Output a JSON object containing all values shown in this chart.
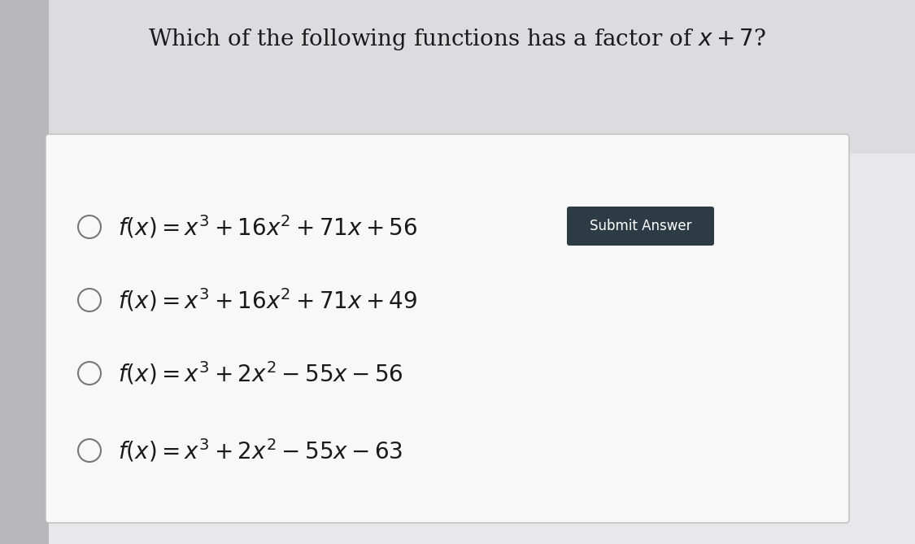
{
  "title": "Which of the following functions has a factor of $x + 7$?",
  "title_fontsize": 20,
  "title_color": "#1a1a1a",
  "outer_bg": "#c9c9cc",
  "inner_bg": "#e8e8ec",
  "card_color": "#f5f5f7",
  "card_border_color": "#bbbbbb",
  "options": [
    "$f(x) = x^3 + 16x^2 + 71x + 56$",
    "$f(x) = x^3 + 16x^2 + 71x + 49$",
    "$f(x) = x^3 + 2x^2 - 55x - 56$",
    "$f(x) = x^3 + 2x^2 - 55x - 63$"
  ],
  "option_fontsize": 20,
  "option_color": "#1a1a1a",
  "circle_color": "#777777",
  "submit_button_text": "Submit Answer",
  "submit_button_bg": "#2d3b45",
  "submit_button_text_color": "#ffffff",
  "submit_button_fontsize": 12
}
